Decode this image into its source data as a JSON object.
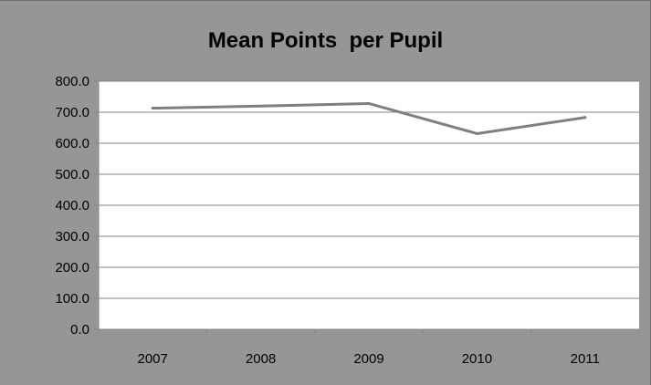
{
  "chart_data": {
    "type": "line",
    "title": "Mean Points  per Pupil",
    "xlabel": "",
    "ylabel": "",
    "categories": [
      "2007",
      "2008",
      "2009",
      "2010",
      "2011"
    ],
    "series": [
      {
        "values": [
          713,
          720,
          728,
          631,
          683
        ]
      }
    ],
    "ylim": [
      0,
      800
    ],
    "yticks": [
      "0.0",
      "100.0",
      "200.0",
      "300.0",
      "400.0",
      "500.0",
      "600.0",
      "700.0",
      "800.0"
    ],
    "grid": true,
    "legend": "none",
    "colors": {
      "line": "#7f7f7f",
      "chart_background": "#969696",
      "plot_background": "#ffffff",
      "gridline": "#868686"
    }
  }
}
